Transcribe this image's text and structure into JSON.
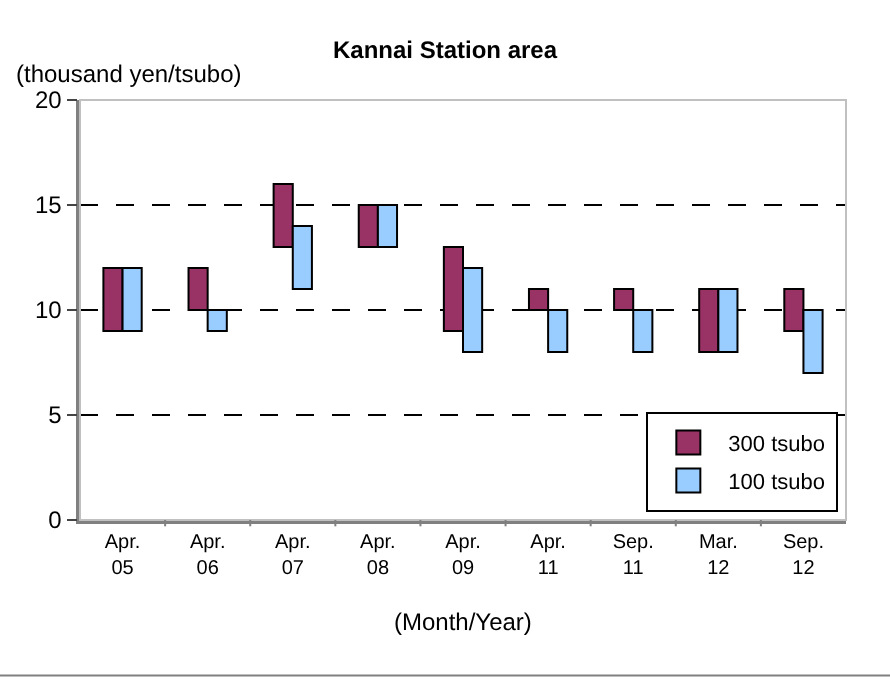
{
  "chart_data": {
    "type": "bar",
    "title": "Kannai Station area",
    "ylabel": "(thousand yen/tsubo)",
    "xlabel": "(Month/Year)",
    "categories": [
      "Apr.\n05",
      "Apr.\n06",
      "Apr.\n07",
      "Apr.\n08",
      "Apr.\n09",
      "Apr.\n11",
      "Sep.\n11",
      "Mar.\n12",
      "Sep.\n12"
    ],
    "series": [
      {
        "name": "300 tsubo",
        "color": "#993366",
        "base": [
          9,
          10,
          13,
          13,
          9,
          10,
          10,
          8,
          9
        ],
        "values": [
          3,
          2,
          3,
          2,
          4,
          1,
          1,
          3,
          2
        ]
      },
      {
        "name": "100 tsubo",
        "color": "#99ccff",
        "base": [
          9,
          9,
          11,
          13,
          8,
          8,
          8,
          8,
          7
        ],
        "values": [
          3,
          1,
          3,
          2,
          4,
          2,
          2,
          3,
          3
        ]
      }
    ],
    "ylim": [
      0,
      20
    ],
    "yticks": [
      0,
      5,
      10,
      15,
      20
    ],
    "grid": "y",
    "legend": "bottom right"
  }
}
